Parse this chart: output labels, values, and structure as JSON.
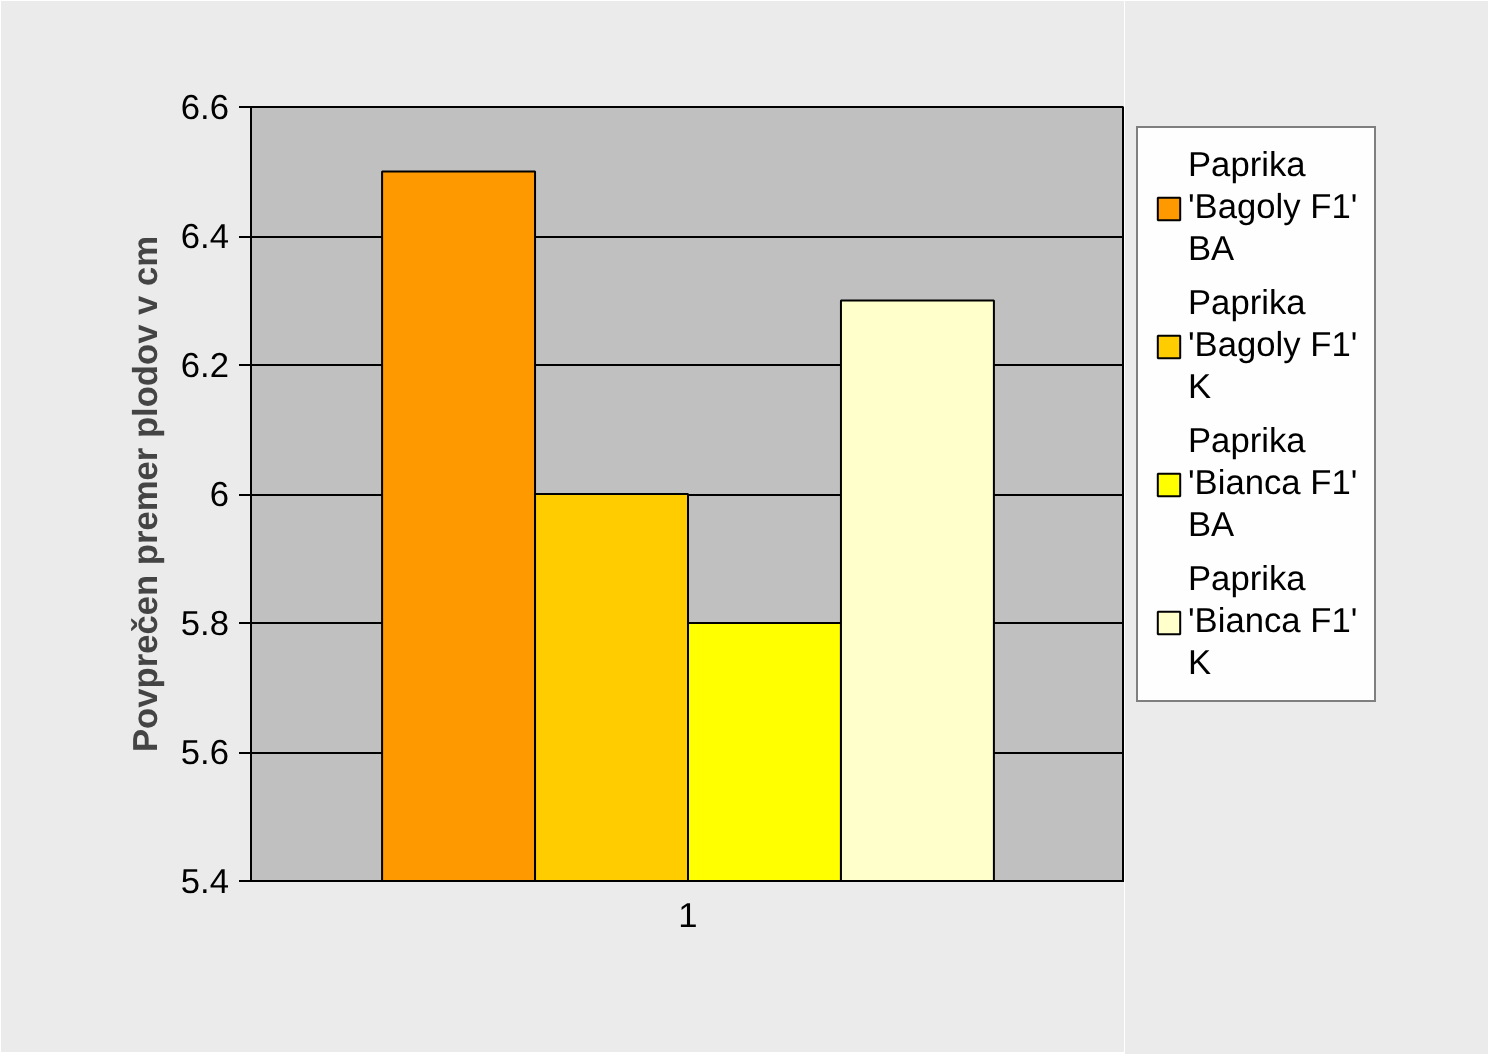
{
  "chart_data": {
    "type": "bar",
    "ylabel": "Povprečen premer plodov v cm",
    "categories": [
      "1"
    ],
    "series": [
      {
        "name": "Paprika 'Bagoly F1' BA",
        "color": "#ff9900",
        "values": [
          6.5
        ]
      },
      {
        "name": "Paprika 'Bagoly F1' K",
        "color": "#ffcc00",
        "values": [
          6.0
        ]
      },
      {
        "name": "Paprika 'Bianca F1' BA",
        "color": "#ffff00",
        "values": [
          5.8
        ]
      },
      {
        "name": "Paprika 'Bianca F1' K",
        "color": "#ffffcc",
        "values": [
          6.3
        ]
      }
    ],
    "ylim": [
      5.4,
      6.6
    ],
    "yticks": [
      5.4,
      5.6,
      5.8,
      6,
      6.2,
      6.4,
      6.6
    ],
    "grid": "y",
    "legend": "right"
  }
}
